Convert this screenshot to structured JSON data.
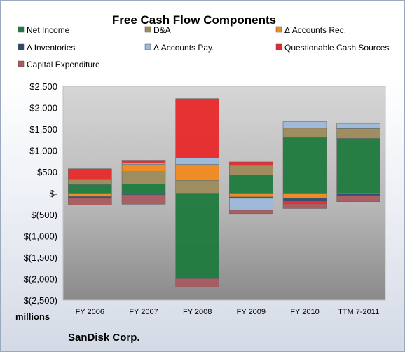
{
  "chart_data": {
    "type": "bar",
    "stacked": true,
    "title": "Free Cash Flow Components",
    "units_label": "millions",
    "footer": "SanDisk Corp.",
    "categories": [
      "FY 2006",
      "FY 2007",
      "FY 2008",
      "FY 2009",
      "FY 2010",
      "TTM 7-2011"
    ],
    "ylim": [
      -2500,
      2500
    ],
    "y_ticks": [
      2500,
      2000,
      1500,
      1000,
      500,
      0,
      -500,
      -1000,
      -1500,
      -2000,
      -2500
    ],
    "y_tick_labels": [
      "$2,500",
      "$2,000",
      "$1,500",
      "$1,000",
      "$500",
      "$-",
      "$(500)",
      "$(1,000)",
      "$(1,500)",
      "$(2,000)",
      "$(2,500)"
    ],
    "grid": false,
    "legend_position": "top",
    "series": [
      {
        "name": "Net Income",
        "color": "#1e7a3e",
        "values": [
          200,
          210,
          -1980,
          420,
          1300,
          1280
        ]
      },
      {
        "name": "D&A",
        "color": "#9c8a5a",
        "values": [
          110,
          290,
          300,
          230,
          220,
          230
        ]
      },
      {
        "name": "Δ Accounts Rec.",
        "color": "#f08a1c",
        "values": [
          -80,
          170,
          370,
          -90,
          -120,
          -20
        ]
      },
      {
        "name": "Δ Inventories",
        "color": "#2c4a6e",
        "values": [
          -30,
          -40,
          -20,
          -30,
          -60,
          -40
        ]
      },
      {
        "name": "Δ Accounts Pay.",
        "color": "#9db8da",
        "values": [
          20,
          30,
          150,
          -280,
          150,
          120
        ]
      },
      {
        "name": "Questionable Cash Sources",
        "color": "#e8292b",
        "values": [
          240,
          70,
          1390,
          80,
          -70,
          0
        ]
      },
      {
        "name": "Capital Expenditure",
        "color": "#a85a5e",
        "values": [
          -170,
          -220,
          -190,
          -80,
          -110,
          -140
        ]
      }
    ]
  }
}
